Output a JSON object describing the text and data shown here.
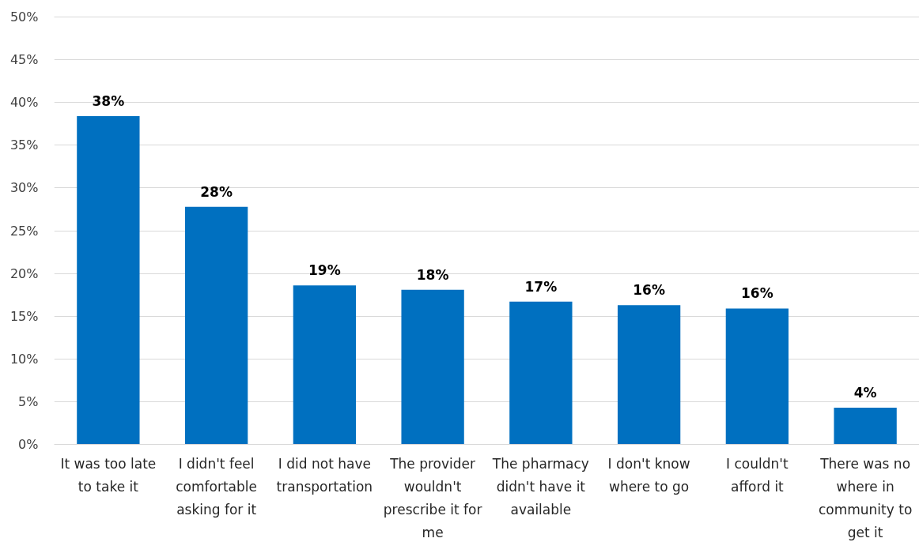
{
  "chart_data": {
    "type": "bar",
    "categories": [
      "It was too late to take it",
      "I didn't feel comfortable asking for it",
      "I did not have transportation",
      "The provider wouldn't prescribe it for me",
      "The pharmacy didn't have it available",
      "I don't know where to go",
      "I couldn't afford it",
      "There was no where in community to get it"
    ],
    "values": [
      38.4,
      27.8,
      18.6,
      18.1,
      16.7,
      16.3,
      15.9,
      4.3
    ],
    "value_labels": [
      "38%",
      "28%",
      "19%",
      "18%",
      "17%",
      "16%",
      "16%",
      "4%"
    ],
    "color": "#0070c0",
    "ylim": [
      0,
      50
    ],
    "yticks": [
      {
        "value": 0,
        "label": "0%"
      },
      {
        "value": 5,
        "label": "5%"
      },
      {
        "value": 10,
        "label": "10%"
      },
      {
        "value": 15,
        "label": "15%"
      },
      {
        "value": 20,
        "label": "20%"
      },
      {
        "value": 25,
        "label": "25%"
      },
      {
        "value": 30,
        "label": "30%"
      },
      {
        "value": 35,
        "label": "35%"
      },
      {
        "value": 40,
        "label": "40%"
      },
      {
        "value": 45,
        "label": "45%"
      },
      {
        "value": 50,
        "label": "50%"
      }
    ],
    "grid": "y"
  }
}
